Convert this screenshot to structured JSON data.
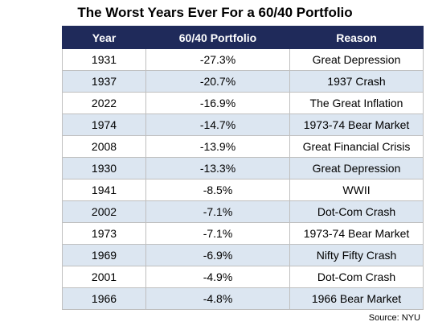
{
  "header": {
    "title": "The Worst Years Ever For a 60/40 Portfolio"
  },
  "table": {
    "columns": [
      "Year",
      "60/40 Portfolio",
      "Reason"
    ],
    "rows": [
      [
        "1931",
        "-27.3%",
        "Great Depression"
      ],
      [
        "1937",
        "-20.7%",
        "1937 Crash"
      ],
      [
        "2022",
        "-16.9%",
        "The Great Inflation"
      ],
      [
        "1974",
        "-14.7%",
        "1973-74 Bear Market"
      ],
      [
        "2008",
        "-13.9%",
        "Great Financial Crisis"
      ],
      [
        "1930",
        "-13.3%",
        "Great Depression"
      ],
      [
        "1941",
        "-8.5%",
        "WWII"
      ],
      [
        "2002",
        "-7.1%",
        "Dot-Com Crash"
      ],
      [
        "1973",
        "-7.1%",
        "1973-74 Bear Market"
      ],
      [
        "1969",
        "-6.9%",
        "Nifty Fifty Crash"
      ],
      [
        "2001",
        "-4.9%",
        "Dot-Com Crash"
      ],
      [
        "1966",
        "-4.8%",
        "1966 Bear Market"
      ]
    ]
  },
  "footer": {
    "source": "Source: NYU"
  }
}
